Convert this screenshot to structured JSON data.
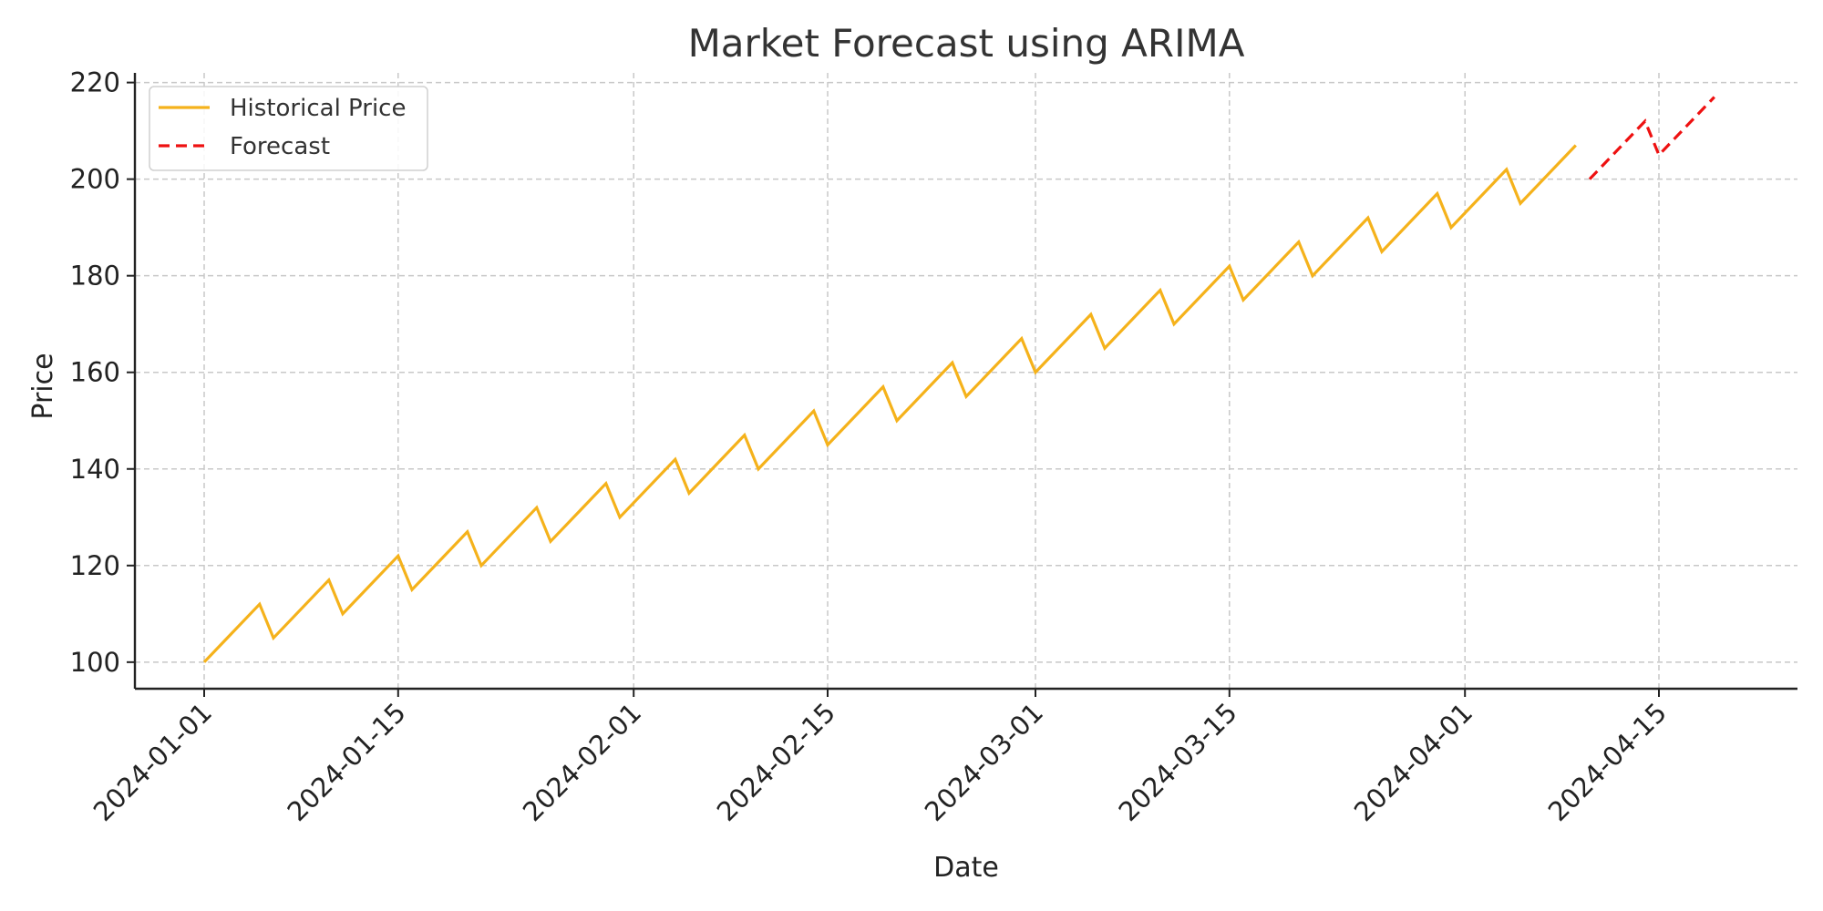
{
  "chart_data": {
    "type": "line",
    "title": "Market Forecast using ARIMA",
    "xlabel": "Date",
    "ylabel": "Price",
    "x_axis_type": "date",
    "xlim": [
      "2023-12-27",
      "2024-04-25"
    ],
    "ylim": [
      94.5,
      222
    ],
    "y_ticks": [
      100,
      120,
      140,
      160,
      180,
      200,
      220
    ],
    "x_ticks": [
      "2024-01-01",
      "2024-01-15",
      "2024-02-01",
      "2024-02-15",
      "2024-03-01",
      "2024-03-15",
      "2024-04-01",
      "2024-04-15"
    ],
    "grid": true,
    "legend_position": "top-left",
    "series": [
      {
        "name": "Historical Price",
        "color": "#f5b21b",
        "style": "solid",
        "points": [
          [
            "2024-01-01",
            100
          ],
          [
            "2024-01-05",
            112
          ],
          [
            "2024-01-06",
            105
          ],
          [
            "2024-01-10",
            117
          ],
          [
            "2024-01-11",
            110
          ],
          [
            "2024-01-15",
            122
          ],
          [
            "2024-01-16",
            115
          ],
          [
            "2024-01-20",
            127
          ],
          [
            "2024-01-21",
            120
          ],
          [
            "2024-01-25",
            132
          ],
          [
            "2024-01-26",
            125
          ],
          [
            "2024-01-30",
            137
          ],
          [
            "2024-01-31",
            130
          ],
          [
            "2024-02-04",
            142
          ],
          [
            "2024-02-05",
            135
          ],
          [
            "2024-02-09",
            147
          ],
          [
            "2024-02-10",
            140
          ],
          [
            "2024-02-14",
            152
          ],
          [
            "2024-02-15",
            145
          ],
          [
            "2024-02-19",
            157
          ],
          [
            "2024-02-20",
            150
          ],
          [
            "2024-02-24",
            162
          ],
          [
            "2024-02-25",
            155
          ],
          [
            "2024-02-29",
            167
          ],
          [
            "2024-03-01",
            160
          ],
          [
            "2024-03-05",
            172
          ],
          [
            "2024-03-06",
            165
          ],
          [
            "2024-03-10",
            177
          ],
          [
            "2024-03-11",
            170
          ],
          [
            "2024-03-15",
            182
          ],
          [
            "2024-03-16",
            175
          ],
          [
            "2024-03-20",
            187
          ],
          [
            "2024-03-21",
            180
          ],
          [
            "2024-03-25",
            192
          ],
          [
            "2024-03-26",
            185
          ],
          [
            "2024-03-30",
            197
          ],
          [
            "2024-03-31",
            190
          ],
          [
            "2024-04-04",
            202
          ],
          [
            "2024-04-05",
            195
          ],
          [
            "2024-04-09",
            207
          ]
        ]
      },
      {
        "name": "Forecast",
        "color": "#ee1111",
        "style": "dashed",
        "points": [
          [
            "2024-04-10",
            200
          ],
          [
            "2024-04-14",
            212
          ],
          [
            "2024-04-15",
            205
          ],
          [
            "2024-04-19",
            217
          ]
        ]
      }
    ]
  }
}
